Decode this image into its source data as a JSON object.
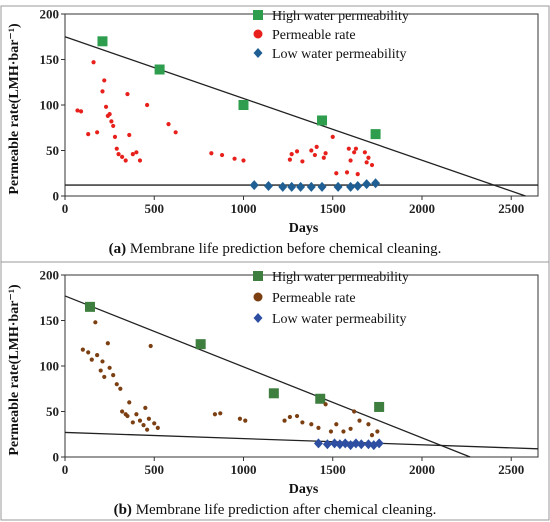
{
  "chart_data": [
    {
      "type": "scatter",
      "panel_label": "(a)",
      "caption": "Membrane life prediction before chemical cleaning.",
      "xlabel": "Days",
      "ylabel": "Permeable rate(LMH·bar⁻¹)",
      "xlim": [
        0,
        2650
      ],
      "ylim": [
        0,
        200
      ],
      "xticks": [
        0,
        500,
        1000,
        1500,
        2000,
        2500
      ],
      "yticks": [
        0,
        50,
        100,
        150,
        200
      ],
      "legend_position": "top-right",
      "series": [
        {
          "name": "High water permeability",
          "marker": "square",
          "color": "#2e9e4e",
          "points": [
            [
              210,
              170
            ],
            [
              530,
              139
            ],
            [
              1000,
              100
            ],
            [
              1440,
              83
            ],
            [
              1740,
              68
            ]
          ]
        },
        {
          "name": "Permeable rate",
          "marker": "circle",
          "color": "#e8201c",
          "points": [
            [
              70,
              94
            ],
            [
              90,
              93
            ],
            [
              130,
              68
            ],
            [
              160,
              147
            ],
            [
              180,
              70
            ],
            [
              210,
              115
            ],
            [
              220,
              127
            ],
            [
              230,
              98
            ],
            [
              240,
              88
            ],
            [
              250,
              90
            ],
            [
              260,
              82
            ],
            [
              270,
              77
            ],
            [
              280,
              65
            ],
            [
              290,
              52
            ],
            [
              300,
              46
            ],
            [
              320,
              43
            ],
            [
              340,
              39
            ],
            [
              350,
              112
            ],
            [
              360,
              67
            ],
            [
              380,
              46
            ],
            [
              400,
              48
            ],
            [
              420,
              39
            ],
            [
              460,
              100
            ],
            [
              580,
              79
            ],
            [
              620,
              70
            ],
            [
              820,
              47
            ],
            [
              880,
              45
            ],
            [
              950,
              41
            ],
            [
              1000,
              39
            ],
            [
              1260,
              40
            ],
            [
              1270,
              46
            ],
            [
              1300,
              49
            ],
            [
              1330,
              38
            ],
            [
              1380,
              50
            ],
            [
              1400,
              45
            ],
            [
              1410,
              54
            ],
            [
              1450,
              42
            ],
            [
              1460,
              47
            ],
            [
              1500,
              65
            ],
            [
              1520,
              25
            ],
            [
              1580,
              26
            ],
            [
              1590,
              52
            ],
            [
              1600,
              39
            ],
            [
              1620,
              48
            ],
            [
              1630,
              52
            ],
            [
              1640,
              24
            ],
            [
              1680,
              48
            ],
            [
              1690,
              37
            ],
            [
              1700,
              42
            ],
            [
              1720,
              34
            ]
          ]
        },
        {
          "name": "Low water permeability",
          "marker": "diamond",
          "color": "#1f5f94",
          "points": [
            [
              1060,
              12
            ],
            [
              1140,
              11
            ],
            [
              1220,
              10
            ],
            [
              1270,
              10
            ],
            [
              1320,
              10
            ],
            [
              1380,
              10
            ],
            [
              1440,
              10
            ],
            [
              1530,
              10
            ],
            [
              1600,
              10
            ],
            [
              1640,
              11
            ],
            [
              1690,
              13
            ],
            [
              1740,
              14
            ]
          ]
        }
      ],
      "trend_lines": [
        {
          "points": [
            [
              0,
              175
            ],
            [
              2580,
              0
            ]
          ]
        },
        {
          "points": [
            [
              0,
              12
            ],
            [
              2650,
              12
            ]
          ]
        }
      ]
    },
    {
      "type": "scatter",
      "panel_label": "(b)",
      "caption": "Membrane life prediction after chemical cleaning.",
      "xlabel": "Days",
      "ylabel": "Permeable rate(LMH·bar⁻¹)",
      "xlim": [
        0,
        2650
      ],
      "ylim": [
        0,
        200
      ],
      "xticks": [
        0,
        500,
        1000,
        1500,
        2000,
        2500
      ],
      "yticks": [
        0,
        50,
        100,
        150,
        200
      ],
      "legend_position": "top-right",
      "series": [
        {
          "name": "High water permeability",
          "marker": "square",
          "color": "#3e7e3e",
          "points": [
            [
              140,
              165
            ],
            [
              760,
              124
            ],
            [
              1170,
              70
            ],
            [
              1430,
              64
            ],
            [
              1760,
              55
            ]
          ]
        },
        {
          "name": "Permeable rate",
          "marker": "circle",
          "color": "#7b3f12",
          "points": [
            [
              100,
              118
            ],
            [
              130,
              115
            ],
            [
              150,
              107
            ],
            [
              170,
              148
            ],
            [
              180,
              112
            ],
            [
              200,
              95
            ],
            [
              210,
              105
            ],
            [
              220,
              88
            ],
            [
              240,
              125
            ],
            [
              250,
              98
            ],
            [
              270,
              90
            ],
            [
              290,
              80
            ],
            [
              310,
              75
            ],
            [
              320,
              50
            ],
            [
              340,
              47
            ],
            [
              350,
              45
            ],
            [
              360,
              60
            ],
            [
              380,
              38
            ],
            [
              400,
              47
            ],
            [
              420,
              40
            ],
            [
              440,
              35
            ],
            [
              450,
              54
            ],
            [
              460,
              30
            ],
            [
              470,
              42
            ],
            [
              480,
              122
            ],
            [
              500,
              37
            ],
            [
              520,
              32
            ],
            [
              840,
              47
            ],
            [
              870,
              48
            ],
            [
              980,
              42
            ],
            [
              1010,
              40
            ],
            [
              1230,
              40
            ],
            [
              1260,
              44
            ],
            [
              1300,
              45
            ],
            [
              1330,
              38
            ],
            [
              1380,
              36
            ],
            [
              1420,
              32
            ],
            [
              1460,
              58
            ],
            [
              1490,
              28
            ],
            [
              1520,
              36
            ],
            [
              1560,
              28
            ],
            [
              1600,
              31
            ],
            [
              1620,
              50
            ],
            [
              1650,
              40
            ],
            [
              1700,
              36
            ],
            [
              1720,
              24
            ],
            [
              1750,
              28
            ]
          ]
        },
        {
          "name": "Low water permeability",
          "marker": "diamond",
          "color": "#2e4fa1",
          "points": [
            [
              1420,
              15
            ],
            [
              1470,
              14
            ],
            [
              1510,
              15
            ],
            [
              1540,
              14
            ],
            [
              1570,
              15
            ],
            [
              1600,
              13
            ],
            [
              1630,
              15
            ],
            [
              1660,
              14
            ],
            [
              1700,
              14
            ],
            [
              1730,
              13
            ],
            [
              1760,
              15
            ]
          ]
        }
      ],
      "trend_lines": [
        {
          "points": [
            [
              0,
              177
            ],
            [
              2270,
              0
            ]
          ]
        },
        {
          "points": [
            [
              0,
              27
            ],
            [
              2650,
              9
            ]
          ]
        }
      ]
    }
  ]
}
